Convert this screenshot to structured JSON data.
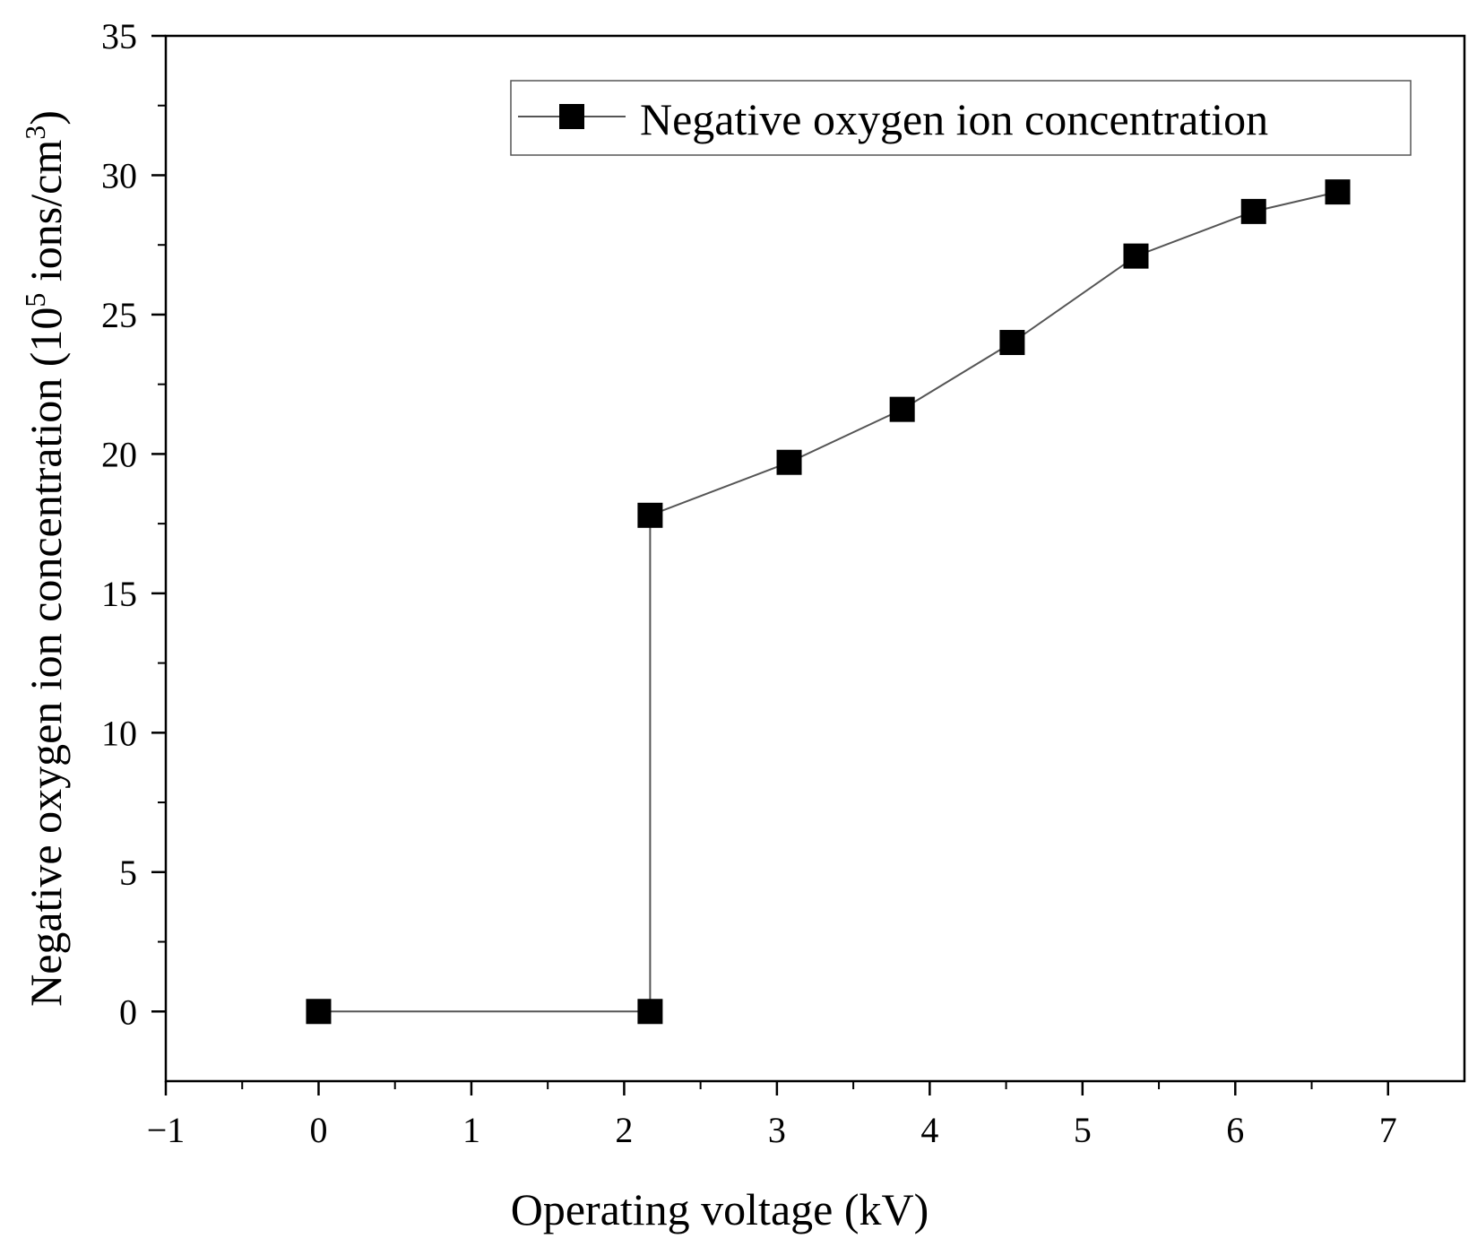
{
  "chart_data": {
    "type": "line",
    "title": "",
    "xlabel": "Operating voltage (kV)",
    "ylabel": {
      "prefix": "Negative oxygen ion concentration (10",
      "exp1": "5",
      "middle": " ions/cm",
      "exp2": "3",
      "suffix": ")"
    },
    "xlim": [
      -1,
      7.5
    ],
    "ylim": [
      -2.5,
      35
    ],
    "xticks": [
      -1,
      0,
      1,
      2,
      3,
      4,
      5,
      6,
      7
    ],
    "xtick_labels": [
      "−1",
      "0",
      "1",
      "2",
      "3",
      "4",
      "5",
      "6",
      "7"
    ],
    "yticks": [
      0,
      5,
      10,
      15,
      20,
      25,
      30,
      35
    ],
    "ytick_labels": [
      "0",
      "5",
      "10",
      "15",
      "20",
      "25",
      "30",
      "35"
    ],
    "grid": false,
    "legend_position": "top-right",
    "series": [
      {
        "name": "Negative oxygen ion concentration",
        "marker": "square",
        "color": "#000000",
        "line_color": "#555555",
        "x": [
          0,
          2.17,
          2.17,
          3.08,
          3.82,
          4.54,
          5.35,
          6.12,
          6.67
        ],
        "y": [
          0,
          0,
          17.8,
          19.7,
          21.6,
          24.0,
          27.1,
          28.7,
          29.4
        ]
      }
    ]
  }
}
